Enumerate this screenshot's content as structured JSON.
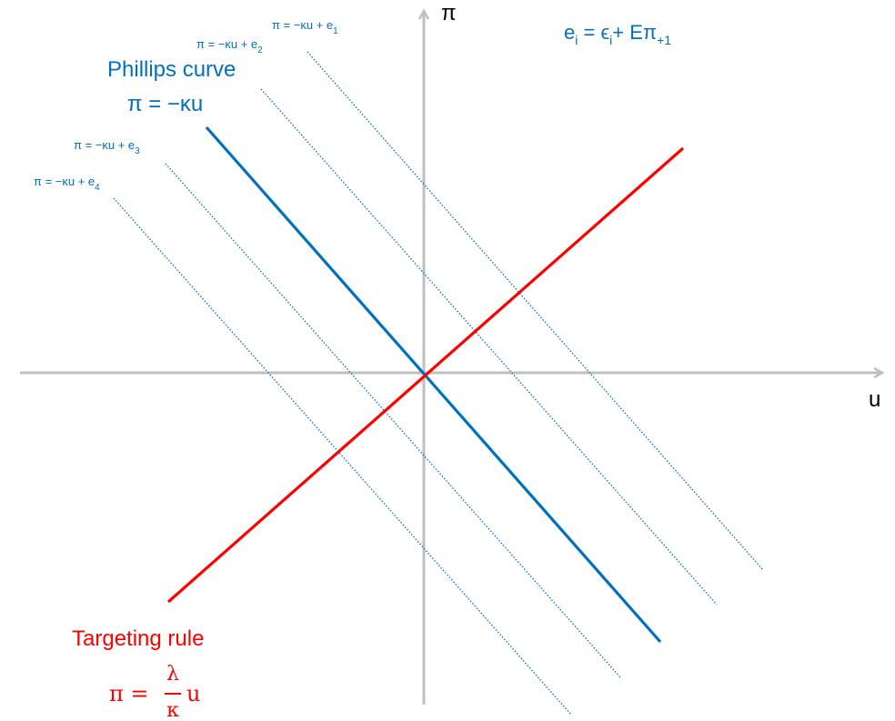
{
  "axes": {
    "x_label": "u",
    "y_label": "π"
  },
  "equation_note": {
    "e_base": "e",
    "e_sub": "i",
    "eq": " = ϵ",
    "eps_sub": "i",
    "plus": "+ Eπ",
    "pi_sub": "+1"
  },
  "phillips": {
    "title": "Phillips curve",
    "equation": "π = −κu",
    "color": "#0070C0"
  },
  "targeting": {
    "title": "Targeting rule",
    "lhs": "π = ",
    "numerator": "λ",
    "denominator": "κ",
    "var": "u",
    "color": "#FF0000"
  },
  "shifted_curves": [
    {
      "prefix": "π = −κu + e",
      "sub": "1"
    },
    {
      "prefix": "π = −κu + e",
      "sub": "2"
    },
    {
      "prefix": "π = −κu + e",
      "sub": "3"
    },
    {
      "prefix": "π = −κu + e",
      "sub": "4"
    }
  ],
  "colors": {
    "axis": "#BFBFBF",
    "phillips": "#0070C0",
    "targeting": "#FF0000",
    "shifted": "#0070C0"
  }
}
